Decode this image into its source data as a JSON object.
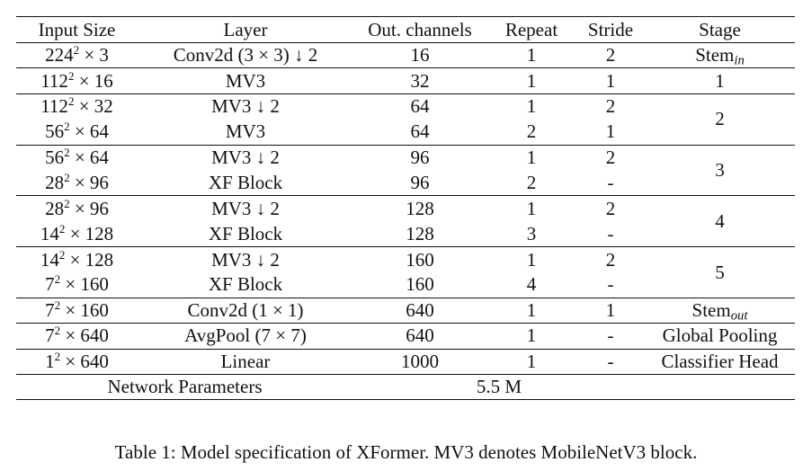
{
  "table": {
    "headers": [
      "Input Size",
      "Layer",
      "Out. channels",
      "Repeat",
      "Stride",
      "Stage"
    ],
    "rows": [
      {
        "in_base": "224",
        "in_exp": "2",
        "in_rest": " × 3",
        "layer": "Conv2d (3 × 3) ↓ 2",
        "out": "16",
        "repeat": "1",
        "stride": "2",
        "stage": "Stem",
        "stage_sub": "in"
      },
      {
        "in_base": "112",
        "in_exp": "2",
        "in_rest": " × 16",
        "layer": "MV3",
        "out": "32",
        "repeat": "1",
        "stride": "1",
        "stage": "1"
      },
      {
        "in_base": "112",
        "in_exp": "2",
        "in_rest": " × 32",
        "layer": "MV3 ↓ 2",
        "out": "64",
        "repeat": "1",
        "stride": "2",
        "stage": "2"
      },
      {
        "in_base": "56",
        "in_exp": "2",
        "in_rest": " × 64",
        "layer": "MV3",
        "out": "64",
        "repeat": "2",
        "stride": "1"
      },
      {
        "in_base": "56",
        "in_exp": "2",
        "in_rest": " × 64",
        "layer": "MV3 ↓ 2",
        "out": "96",
        "repeat": "1",
        "stride": "2",
        "stage": "3"
      },
      {
        "in_base": "28",
        "in_exp": "2",
        "in_rest": " × 96",
        "layer": "XF Block",
        "out": "96",
        "repeat": "2",
        "stride": "-"
      },
      {
        "in_base": "28",
        "in_exp": "2",
        "in_rest": " × 96",
        "layer": "MV3 ↓ 2",
        "out": "128",
        "repeat": "1",
        "stride": "2",
        "stage": "4"
      },
      {
        "in_base": "14",
        "in_exp": "2",
        "in_rest": " × 128",
        "layer": "XF Block",
        "out": "128",
        "repeat": "3",
        "stride": "-"
      },
      {
        "in_base": "14",
        "in_exp": "2",
        "in_rest": " × 128",
        "layer": "MV3 ↓ 2",
        "out": "160",
        "repeat": "1",
        "stride": "2",
        "stage": "5"
      },
      {
        "in_base": "7",
        "in_exp": "2",
        "in_rest": " × 160",
        "layer": "XF Block",
        "out": "160",
        "repeat": "4",
        "stride": "-"
      },
      {
        "in_base": "7",
        "in_exp": "2",
        "in_rest": " × 160",
        "layer": "Conv2d (1 × 1)",
        "out": "640",
        "repeat": "1",
        "stride": "1",
        "stage": "Stem",
        "stage_sub": "out"
      },
      {
        "in_base": "7",
        "in_exp": "2",
        "in_rest": " × 640",
        "layer": "AvgPool (7 × 7)",
        "out": "640",
        "repeat": "1",
        "stride": "-",
        "stage": "Global Pooling"
      },
      {
        "in_base": "1",
        "in_exp": "2",
        "in_rest": " × 640",
        "layer": "Linear",
        "out": "1000",
        "repeat": "1",
        "stride": "-",
        "stage": "Classifier Head"
      }
    ],
    "params_label": "Network Parameters",
    "params_value": "5.5 M"
  },
  "caption": "Table 1: Model specification of XFormer. MV3 denotes MobileNetV3 block."
}
